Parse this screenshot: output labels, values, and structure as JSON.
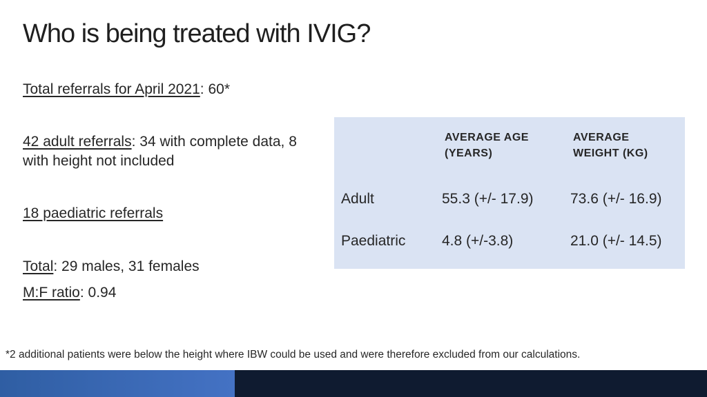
{
  "slide": {
    "title": "Who is being treated with IVIG?"
  },
  "summary": {
    "total_referrals_label": "Total referrals for April 2021",
    "total_referrals_value": ": 60*",
    "adult_label": "42 adult referrals",
    "adult_detail": ": 34 with complete data, 8 with height not included",
    "paediatric_label": "18 paediatric referrals",
    "total_label": "Total",
    "total_detail": ":  29 males, 31 females",
    "ratio_label": "M:F ratio",
    "ratio_value": ": 0.94"
  },
  "table": {
    "headers": [
      "",
      "AVERAGE AGE (YEARS)",
      "AVERAGE WEIGHT (KG)"
    ],
    "rows": [
      [
        "Adult",
        "55.3 (+/- 17.9)",
        "73.6 (+/- 16.9)"
      ],
      [
        "Paediatric",
        "4.8 (+/-3.8)",
        "21.0 (+/- 14.5)"
      ]
    ]
  },
  "footnote": "*2 additional patients were below the height where IBW could be used and were therefore excluded from our calculations.",
  "colors": {
    "table_bg": "#dae3f3",
    "bar_left": "#4472c4",
    "bar_right": "#0f1b30"
  }
}
